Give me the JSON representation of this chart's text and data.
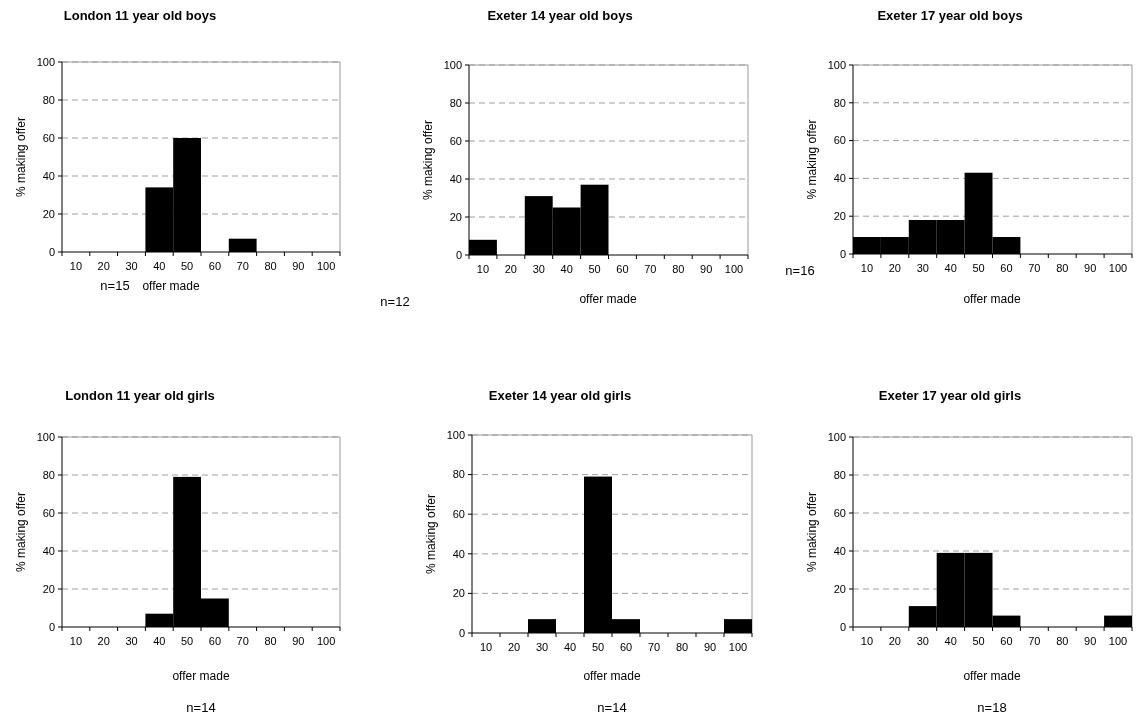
{
  "chart_data": [
    {
      "type": "bar",
      "title": "London 11 year old boys",
      "xlabel": "offer made",
      "ylabel": "% making offer",
      "annotations": [
        "n=15"
      ],
      "categories": [
        "10",
        "20",
        "30",
        "40",
        "50",
        "60",
        "70",
        "80",
        "90",
        "100"
      ],
      "values": [
        0,
        0,
        0,
        34,
        60,
        0,
        7,
        0,
        0,
        0
      ],
      "color": "#000000",
      "ylim": [
        0,
        100
      ],
      "yticks": [
        0,
        20,
        40,
        60,
        80,
        100
      ],
      "grid": "y"
    },
    {
      "type": "bar",
      "title": "Exeter 14 year old boys",
      "xlabel": "offer made",
      "ylabel": "% making offer",
      "annotations": [
        "n=12"
      ],
      "categories": [
        "10",
        "20",
        "30",
        "40",
        "50",
        "60",
        "70",
        "80",
        "90",
        "100"
      ],
      "values": [
        8,
        0,
        31,
        25,
        37,
        0,
        0,
        0,
        0,
        0
      ],
      "color": "#000000",
      "ylim": [
        0,
        100
      ],
      "yticks": [
        0,
        20,
        40,
        60,
        80,
        100
      ],
      "grid": "y"
    },
    {
      "type": "bar",
      "title": "Exeter 17 year old boys",
      "xlabel": "offer made",
      "ylabel": "% making offer",
      "annotations": [
        "n=16"
      ],
      "categories": [
        "10",
        "20",
        "30",
        "40",
        "50",
        "60",
        "70",
        "80",
        "90",
        "100"
      ],
      "values": [
        9,
        9,
        18,
        18,
        43,
        9,
        0,
        0,
        0,
        0
      ],
      "color": "#000000",
      "ylim": [
        0,
        100
      ],
      "yticks": [
        0,
        20,
        40,
        60,
        80,
        100
      ],
      "grid": "y"
    },
    {
      "type": "bar",
      "title": "London 11 year old girls",
      "xlabel": "offer made",
      "ylabel": "% making offer",
      "annotations": [
        "n=14"
      ],
      "categories": [
        "10",
        "20",
        "30",
        "40",
        "50",
        "60",
        "70",
        "80",
        "90",
        "100"
      ],
      "values": [
        0,
        0,
        0,
        7,
        79,
        15,
        0,
        0,
        0,
        0
      ],
      "color": "#000000",
      "ylim": [
        0,
        100
      ],
      "yticks": [
        0,
        20,
        40,
        60,
        80,
        100
      ],
      "grid": "y"
    },
    {
      "type": "bar",
      "title": "Exeter 14 year old girls",
      "xlabel": "offer made",
      "ylabel": "% making offer",
      "annotations": [
        "n=14"
      ],
      "categories": [
        "10",
        "20",
        "30",
        "40",
        "50",
        "60",
        "70",
        "80",
        "90",
        "100"
      ],
      "values": [
        0,
        0,
        7,
        0,
        79,
        7,
        0,
        0,
        0,
        7
      ],
      "color": "#000000",
      "ylim": [
        0,
        100
      ],
      "yticks": [
        0,
        20,
        40,
        60,
        80,
        100
      ],
      "grid": "y"
    },
    {
      "type": "bar",
      "title": "Exeter 17 year old girls",
      "xlabel": "offer made",
      "ylabel": "% making offer",
      "annotations": [
        "n=18"
      ],
      "categories": [
        "10",
        "20",
        "30",
        "40",
        "50",
        "60",
        "70",
        "80",
        "90",
        "100"
      ],
      "values": [
        0,
        0,
        11,
        39,
        39,
        6,
        0,
        0,
        0,
        6
      ],
      "color": "#000000",
      "ylim": [
        0,
        100
      ],
      "yticks": [
        0,
        20,
        40,
        60,
        80,
        100
      ],
      "grid": "y"
    }
  ]
}
